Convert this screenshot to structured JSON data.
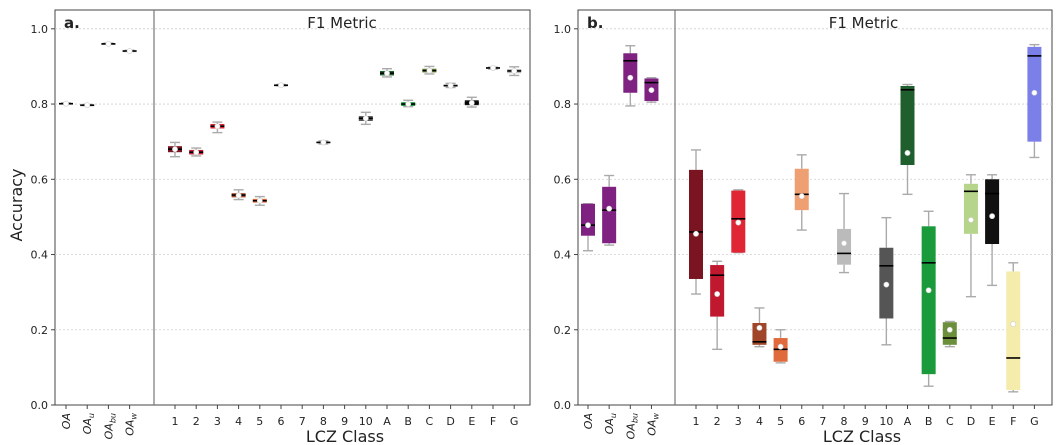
{
  "figure": {
    "ylabel": "Accuracy",
    "xlabel": "LCZ Class",
    "section_title": "F1 Metric"
  },
  "chart_data": [
    {
      "type": "box",
      "panel_label": "a.",
      "title": "F1 Metric",
      "xlabel": "LCZ Class",
      "ylabel": "Accuracy",
      "ylim": [
        0,
        1.05
      ],
      "yticks": [
        0.0,
        0.2,
        0.4,
        0.6,
        0.8,
        1.0
      ],
      "grid": "horizontal dotted",
      "oa_categories": [
        {
          "base": "OA",
          "sub": ""
        },
        {
          "base": "OA",
          "sub": "u"
        },
        {
          "base": "OA",
          "sub": "bu"
        },
        {
          "base": "OA",
          "sub": "w"
        }
      ],
      "categories": [
        "1",
        "2",
        "3",
        "4",
        "5",
        "6",
        "7",
        "8",
        "9",
        "10",
        "A",
        "B",
        "C",
        "D",
        "E",
        "F",
        "G"
      ],
      "boxes": [
        {
          "cat": "OA",
          "color": "#bbbbbb",
          "wlo": 0.801,
          "q1": 0.8,
          "med": 0.801,
          "q3": 0.802,
          "whi": 0.803,
          "mean": 0.801
        },
        {
          "cat": "OAu",
          "color": "#bbbbbb",
          "wlo": 0.796,
          "q1": 0.796,
          "med": 0.797,
          "q3": 0.798,
          "whi": 0.799,
          "mean": 0.797
        },
        {
          "cat": "OAbu",
          "color": "#bbbbbb",
          "wlo": 0.959,
          "q1": 0.959,
          "med": 0.96,
          "q3": 0.961,
          "whi": 0.962,
          "mean": 0.96
        },
        {
          "cat": "OAw",
          "color": "#bbbbbb",
          "wlo": 0.94,
          "q1": 0.94,
          "med": 0.941,
          "q3": 0.942,
          "whi": 0.943,
          "mean": 0.941
        },
        {
          "cat": "1",
          "color": "#7a1420",
          "wlo": 0.66,
          "q1": 0.672,
          "med": 0.68,
          "q3": 0.688,
          "whi": 0.698,
          "mean": 0.68
        },
        {
          "cat": "2",
          "color": "#c0182e",
          "wlo": 0.662,
          "q1": 0.666,
          "med": 0.672,
          "q3": 0.678,
          "whi": 0.683,
          "mean": 0.672
        },
        {
          "cat": "3",
          "color": "#e02535",
          "wlo": 0.724,
          "q1": 0.735,
          "med": 0.741,
          "q3": 0.747,
          "whi": 0.752,
          "mean": 0.741
        },
        {
          "cat": "4",
          "color": "#a04528",
          "wlo": 0.546,
          "q1": 0.552,
          "med": 0.558,
          "q3": 0.563,
          "whi": 0.572,
          "mean": 0.557
        },
        {
          "cat": "5",
          "color": "#e06a3c",
          "wlo": 0.531,
          "q1": 0.538,
          "med": 0.543,
          "q3": 0.548,
          "whi": 0.554,
          "mean": 0.543
        },
        {
          "cat": "6",
          "color": "#bbbbbb",
          "wlo": 0.848,
          "q1": 0.849,
          "med": 0.85,
          "q3": 0.851,
          "whi": 0.852,
          "mean": 0.85
        },
        {
          "cat": "8",
          "color": "#bbbbbb",
          "wlo": 0.694,
          "q1": 0.696,
          "med": 0.698,
          "q3": 0.7,
          "whi": 0.702,
          "mean": 0.698
        },
        {
          "cat": "10",
          "color": "#555555",
          "wlo": 0.746,
          "q1": 0.755,
          "med": 0.762,
          "q3": 0.768,
          "whi": 0.778,
          "mean": 0.762
        },
        {
          "cat": "A",
          "color": "#1f5f2e",
          "wlo": 0.872,
          "q1": 0.876,
          "med": 0.882,
          "q3": 0.888,
          "whi": 0.894,
          "mean": 0.882
        },
        {
          "cat": "B",
          "color": "#1a9a3a",
          "wlo": 0.793,
          "q1": 0.795,
          "med": 0.8,
          "q3": 0.805,
          "whi": 0.81,
          "mean": 0.8
        },
        {
          "cat": "C",
          "color": "#6b8f3a",
          "wlo": 0.88,
          "q1": 0.884,
          "med": 0.889,
          "q3": 0.894,
          "whi": 0.9,
          "mean": 0.889
        },
        {
          "cat": "D",
          "color": "#bbbbbb",
          "wlo": 0.844,
          "q1": 0.846,
          "med": 0.849,
          "q3": 0.852,
          "whi": 0.855,
          "mean": 0.849
        },
        {
          "cat": "E",
          "color": "#111111",
          "wlo": 0.792,
          "q1": 0.797,
          "med": 0.803,
          "q3": 0.81,
          "whi": 0.818,
          "mean": 0.803
        },
        {
          "cat": "F",
          "color": "#bbbbbb",
          "wlo": 0.893,
          "q1": 0.894,
          "med": 0.896,
          "q3": 0.897,
          "whi": 0.898,
          "mean": 0.896
        },
        {
          "cat": "G",
          "color": "#bbbbbb",
          "wlo": 0.876,
          "q1": 0.882,
          "med": 0.888,
          "q3": 0.893,
          "whi": 0.899,
          "mean": 0.888
        }
      ]
    },
    {
      "type": "box",
      "panel_label": "b.",
      "title": "F1 Metric",
      "xlabel": "LCZ Class",
      "ylabel": "",
      "ylim": [
        0,
        1.05
      ],
      "yticks": [
        0.0,
        0.2,
        0.4,
        0.6,
        0.8,
        1.0
      ],
      "grid": "horizontal dotted",
      "oa_categories": [
        {
          "base": "OA",
          "sub": ""
        },
        {
          "base": "OA",
          "sub": "u"
        },
        {
          "base": "OA",
          "sub": "bu"
        },
        {
          "base": "OA",
          "sub": "w"
        }
      ],
      "categories": [
        "1",
        "2",
        "3",
        "4",
        "5",
        "6",
        "7",
        "8",
        "9",
        "10",
        "A",
        "B",
        "C",
        "D",
        "E",
        "F",
        "G"
      ],
      "boxes": [
        {
          "cat": "OA",
          "color": "#7e2181",
          "wlo": 0.41,
          "q1": 0.45,
          "med": 0.478,
          "q3": 0.535,
          "whi": 0.535,
          "mean": 0.478
        },
        {
          "cat": "OAu",
          "color": "#7e2181",
          "wlo": 0.425,
          "q1": 0.43,
          "med": 0.518,
          "q3": 0.58,
          "whi": 0.61,
          "mean": 0.522
        },
        {
          "cat": "OAbu",
          "color": "#7e2181",
          "wlo": 0.795,
          "q1": 0.83,
          "med": 0.915,
          "q3": 0.935,
          "whi": 0.955,
          "mean": 0.87
        },
        {
          "cat": "OAw",
          "color": "#7e2181",
          "wlo": 0.805,
          "q1": 0.808,
          "med": 0.857,
          "q3": 0.868,
          "whi": 0.87,
          "mean": 0.837
        },
        {
          "cat": "1",
          "color": "#7a1420",
          "wlo": 0.295,
          "q1": 0.335,
          "med": 0.46,
          "q3": 0.625,
          "whi": 0.678,
          "mean": 0.455
        },
        {
          "cat": "2",
          "color": "#c0182e",
          "wlo": 0.148,
          "q1": 0.235,
          "med": 0.345,
          "q3": 0.372,
          "whi": 0.382,
          "mean": 0.295
        },
        {
          "cat": "3",
          "color": "#e02535",
          "wlo": 0.405,
          "q1": 0.405,
          "med": 0.495,
          "q3": 0.57,
          "whi": 0.572,
          "mean": 0.485
        },
        {
          "cat": "4",
          "color": "#a04528",
          "wlo": 0.155,
          "q1": 0.16,
          "med": 0.168,
          "q3": 0.218,
          "whi": 0.258,
          "mean": 0.205
        },
        {
          "cat": "5",
          "color": "#e06a3c",
          "wlo": 0.112,
          "q1": 0.115,
          "med": 0.148,
          "q3": 0.178,
          "whi": 0.2,
          "mean": 0.155
        },
        {
          "cat": "6",
          "color": "#eea072",
          "wlo": 0.465,
          "q1": 0.518,
          "med": 0.56,
          "q3": 0.628,
          "whi": 0.665,
          "mean": 0.555
        },
        {
          "cat": "8",
          "color": "#bbbbbb",
          "wlo": 0.352,
          "q1": 0.373,
          "med": 0.403,
          "q3": 0.468,
          "whi": 0.562,
          "mean": 0.43
        },
        {
          "cat": "10",
          "color": "#555555",
          "wlo": 0.16,
          "q1": 0.23,
          "med": 0.37,
          "q3": 0.418,
          "whi": 0.498,
          "mean": 0.32
        },
        {
          "cat": "A",
          "color": "#1f5f2e",
          "wlo": 0.56,
          "q1": 0.638,
          "med": 0.838,
          "q3": 0.848,
          "whi": 0.852,
          "mean": 0.67
        },
        {
          "cat": "B",
          "color": "#1a9a3a",
          "wlo": 0.05,
          "q1": 0.082,
          "med": 0.378,
          "q3": 0.475,
          "whi": 0.515,
          "mean": 0.305
        },
        {
          "cat": "C",
          "color": "#6b8f3a",
          "wlo": 0.155,
          "q1": 0.16,
          "med": 0.178,
          "q3": 0.22,
          "whi": 0.222,
          "mean": 0.2
        },
        {
          "cat": "D",
          "color": "#b6d48a",
          "wlo": 0.288,
          "q1": 0.455,
          "med": 0.568,
          "q3": 0.588,
          "whi": 0.612,
          "mean": 0.492
        },
        {
          "cat": "E",
          "color": "#111111",
          "wlo": 0.318,
          "q1": 0.428,
          "med": 0.562,
          "q3": 0.6,
          "whi": 0.612,
          "mean": 0.502
        },
        {
          "cat": "F",
          "color": "#f5ecab",
          "wlo": 0.035,
          "q1": 0.04,
          "med": 0.125,
          "q3": 0.355,
          "whi": 0.378,
          "mean": 0.215
        },
        {
          "cat": "G",
          "color": "#7b7fe8",
          "wlo": 0.658,
          "q1": 0.7,
          "med": 0.928,
          "q3": 0.952,
          "whi": 0.958,
          "mean": 0.83
        }
      ]
    }
  ]
}
